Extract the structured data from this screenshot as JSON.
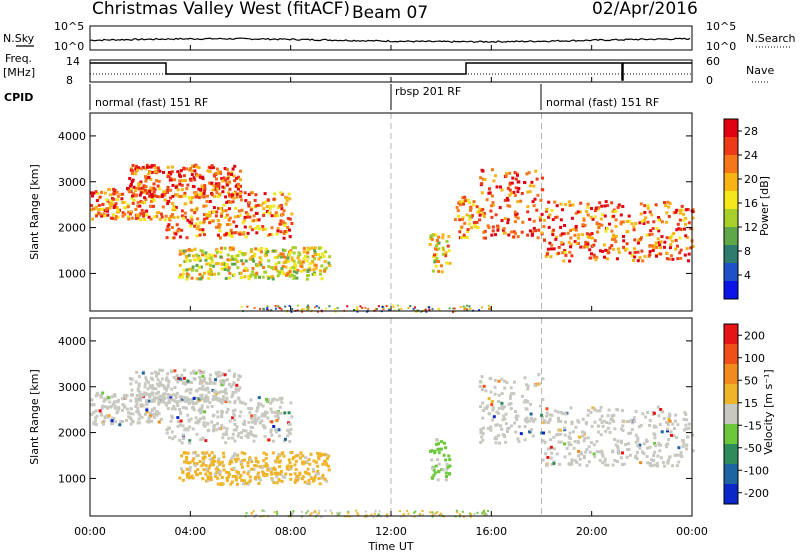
{
  "header": {
    "title": "Christmas Valley West (fitACF)",
    "beam": "Beam 07",
    "date": "02/Apr/2016"
  },
  "sky_panel": {
    "left_label": "N.Sky",
    "right_label": "N.Search",
    "left_ticks": [
      "10^5",
      "10^0"
    ],
    "right_ticks": [
      "10^5",
      "10^0"
    ]
  },
  "freq_panel": {
    "left_label_line1": "Freq.",
    "left_label_line2": "[MHz]",
    "left_ticks": [
      "14",
      "8"
    ],
    "right_label": "Nave",
    "right_ticks": [
      "60",
      "0"
    ]
  },
  "cpid_panel": {
    "label": "CPID",
    "segments": [
      {
        "label": "normal (fast) 151 RF",
        "start_hour": 0,
        "end_hour": 12
      },
      {
        "label": "rbsp 201 RF",
        "start_hour": 12,
        "end_hour": 18
      },
      {
        "label": "normal (fast) 151 RF",
        "start_hour": 18,
        "end_hour": 24
      }
    ]
  },
  "chart_data": [
    {
      "type": "heatmap",
      "name": "power",
      "ylabel": "Slant Range [km]",
      "xlabel": "",
      "yticks": [
        "1000",
        "2000",
        "3000",
        "4000"
      ],
      "ylim": [
        180,
        4500
      ],
      "xlim": [
        0,
        24
      ],
      "colorbar": {
        "label": "Power [dB]",
        "ticks": [
          "4",
          "8",
          "12",
          "16",
          "20",
          "24",
          "28"
        ],
        "range": [
          0,
          30
        ],
        "colors": [
          "#0a14e6",
          "#1e50c8",
          "#2e7c6e",
          "#5ea84a",
          "#a8d02a",
          "#f2e81a",
          "#f7b413",
          "#f6761a",
          "#ef3a18",
          "#e00010"
        ]
      },
      "echo_regions": [
        {
          "t_start": 0.0,
          "t_end": 3.0,
          "r_low": 2200,
          "r_high": 2900,
          "level": 0.75
        },
        {
          "t_start": 1.5,
          "t_end": 6.0,
          "r_low": 2700,
          "r_high": 3400,
          "level": 0.85
        },
        {
          "t_start": 3.0,
          "t_end": 8.0,
          "r_low": 1800,
          "r_high": 2800,
          "level": 0.75
        },
        {
          "t_start": 3.5,
          "t_end": 9.5,
          "r_low": 900,
          "r_high": 1600,
          "level": 0.55
        },
        {
          "t_start": 13.5,
          "t_end": 14.3,
          "r_low": 1000,
          "r_high": 1900,
          "level": 0.6
        },
        {
          "t_start": 14.5,
          "t_end": 15.5,
          "r_low": 1800,
          "r_high": 2700,
          "level": 0.7
        },
        {
          "t_start": 15.5,
          "t_end": 18.0,
          "r_low": 1800,
          "r_high": 3300,
          "level": 0.85
        },
        {
          "t_start": 18.0,
          "t_end": 24.0,
          "r_low": 1300,
          "r_high": 2600,
          "level": 0.8
        }
      ]
    },
    {
      "type": "heatmap",
      "name": "velocity",
      "ylabel": "Slant Range [km]",
      "xlabel": "Time UT",
      "yticks": [
        "1000",
        "2000",
        "3000",
        "4000"
      ],
      "xticks": [
        "00:00",
        "04:00",
        "08:00",
        "12:00",
        "16:00",
        "20:00",
        "00:00"
      ],
      "ylim": [
        180,
        4500
      ],
      "xlim": [
        0,
        24
      ],
      "colorbar": {
        "label": "Velocity [m s⁻¹]",
        "ticks": [
          "200",
          "100",
          "50",
          "15",
          "-15",
          "-50",
          "-100",
          "-200"
        ],
        "colors": [
          "#0a28c8",
          "#1e64a0",
          "#2e8c5a",
          "#6cc83a",
          "#c8c8c0",
          "#f0b428",
          "#f08c1e",
          "#f05018",
          "#e61414"
        ]
      },
      "echo_regions": [
        {
          "t_start": 0.0,
          "t_end": 3.0,
          "r_low": 2200,
          "r_high": 2900,
          "vel_class": "ground"
        },
        {
          "t_start": 1.5,
          "t_end": 6.0,
          "r_low": 2700,
          "r_high": 3400,
          "vel_class": "ground"
        },
        {
          "t_start": 3.0,
          "t_end": 8.0,
          "r_low": 1800,
          "r_high": 2800,
          "vel_class": "ground"
        },
        {
          "t_start": 3.5,
          "t_end": 9.5,
          "r_low": 900,
          "r_high": 1600,
          "vel_class": "away"
        },
        {
          "t_start": 13.5,
          "t_end": 14.3,
          "r_low": 1000,
          "r_high": 1900,
          "vel_class": "toward"
        },
        {
          "t_start": 15.5,
          "t_end": 18.0,
          "r_low": 1800,
          "r_high": 3300,
          "vel_class": "ground"
        },
        {
          "t_start": 18.0,
          "t_end": 24.0,
          "r_low": 1300,
          "r_high": 2600,
          "vel_class": "ground"
        }
      ]
    }
  ],
  "colors": {
    "grid_dash": "#b4b4b4",
    "axis": "#000000"
  }
}
